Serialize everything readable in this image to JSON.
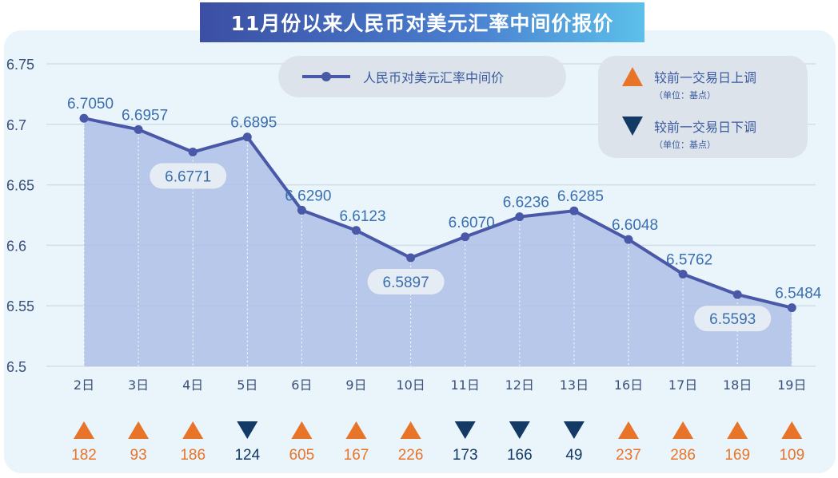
{
  "chart_data": {
    "type": "area",
    "title": "11月份以来人民币对美元汇率中间价报价",
    "categories": [
      "2日",
      "3日",
      "4日",
      "5日",
      "6日",
      "9日",
      "10日",
      "11日",
      "12日",
      "13日",
      "16日",
      "17日",
      "18日",
      "19日"
    ],
    "series": [
      {
        "name": "人民币对美元汇率中间价",
        "values": [
          6.705,
          6.6957,
          6.6771,
          6.6895,
          6.629,
          6.6123,
          6.5897,
          6.607,
          6.6236,
          6.6285,
          6.6048,
          6.5762,
          6.5593,
          6.5484
        ]
      }
    ],
    "value_labels": [
      "6.7050",
      "6.6957",
      "6.6771",
      "6.6895",
      "6.6290",
      "6.6123",
      "6.5897",
      "6.6070",
      "6.6236",
      "6.6285",
      "6.6048",
      "6.5762",
      "6.5593",
      "6.5484"
    ],
    "changes": [
      {
        "dir": "up",
        "bp": "182"
      },
      {
        "dir": "up",
        "bp": "93"
      },
      {
        "dir": "up",
        "bp": "186"
      },
      {
        "dir": "down",
        "bp": "124"
      },
      {
        "dir": "up",
        "bp": "605"
      },
      {
        "dir": "up",
        "bp": "167"
      },
      {
        "dir": "up",
        "bp": "226"
      },
      {
        "dir": "down",
        "bp": "173"
      },
      {
        "dir": "down",
        "bp": "166"
      },
      {
        "dir": "down",
        "bp": "49"
      },
      {
        "dir": "up",
        "bp": "237"
      },
      {
        "dir": "up",
        "bp": "286"
      },
      {
        "dir": "up",
        "bp": "169"
      },
      {
        "dir": "up",
        "bp": "109"
      }
    ],
    "yticks": [
      "6.75",
      "6.7",
      "6.65",
      "6.6",
      "6.55",
      "6.5"
    ],
    "ylim": [
      6.5,
      6.75
    ],
    "grid": true,
    "legend": {
      "series": "人民币对美元汇率中间价",
      "up": "较前一交易日上调",
      "down": "较前一交易日下调",
      "unit": "（单位：基点）"
    },
    "colors": {
      "line": "#4a58a8",
      "area": "#aebfe6",
      "up": "#e8742a",
      "down": "#123a64",
      "label": "#3a6fb0"
    }
  }
}
